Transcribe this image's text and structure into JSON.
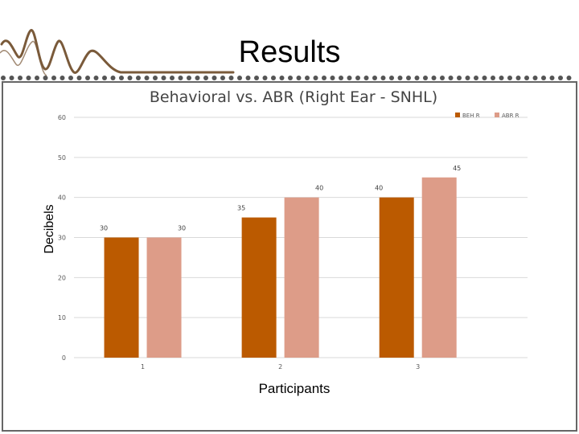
{
  "slide": {
    "title": "Results"
  },
  "colors": {
    "dots": "#555555",
    "wave": "#7a5a3a",
    "frame": "#666666",
    "grid": "#d9d9d9",
    "beh": "#bb5a00",
    "abr": "#dd9c88",
    "tick": "#595959"
  },
  "chart_data": {
    "type": "bar",
    "title": "Behavioral vs. ABR (Right Ear - SNHL)",
    "xlabel": "Participants",
    "ylabel": "Decibels",
    "categories": [
      "1",
      "2",
      "3"
    ],
    "series": [
      {
        "name": "BEH R",
        "values": [
          30,
          35,
          40
        ]
      },
      {
        "name": "ABR R",
        "values": [
          30,
          40,
          45
        ]
      }
    ],
    "ylim": [
      0,
      60
    ],
    "yticks": [
      0,
      10,
      20,
      30,
      40,
      50,
      60
    ],
    "grid": true,
    "legend": "top-right"
  }
}
